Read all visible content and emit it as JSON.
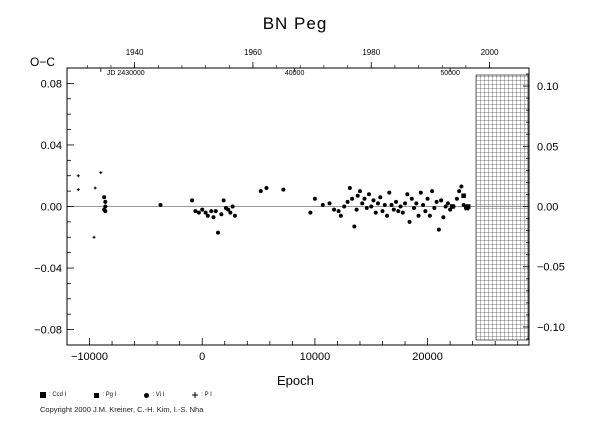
{
  "title": "BN  Peg",
  "ylabel": "O−C",
  "xlabel": "Epoch",
  "copyright": "Copyright 2000 J.M. Kreiner, C.-H. Kim, I.-S. Nha",
  "legend": [
    {
      "symbol": "square-filled",
      "label": ": Ccd I"
    },
    {
      "symbol": "square-small",
      "label": ": Pg I"
    },
    {
      "symbol": "circle-filled",
      "label": ": Vi I"
    },
    {
      "symbol": "plus",
      "label": ": P I"
    }
  ],
  "chart_data": {
    "type": "scatter",
    "title": "BN  Peg",
    "xlabel": "Epoch",
    "ylabel": "O−C",
    "xlim": [
      -12000,
      29000
    ],
    "ylim": [
      -0.09,
      0.09
    ],
    "right_ylim": [
      -0.115,
      0.115
    ],
    "x_ticks": [
      -10000,
      0,
      10000,
      20000
    ],
    "y_ticks": [
      "0.08",
      "0.04",
      "0.00",
      "-0.04",
      "-0.08"
    ],
    "right_ticks": [
      "0.10",
      "0.05",
      "0.00",
      "-0.05",
      "-0.10"
    ],
    "top_year_ticks": [
      "1940",
      "1960",
      "1980",
      "2000"
    ],
    "top_year_epochs": [
      -6000,
      4500,
      15000,
      25500
    ],
    "top_jd_labels": [
      "JD 2430000",
      "40000",
      "50000"
    ],
    "top_jd_epochs": [
      -9000,
      8200,
      22000
    ],
    "shaded_region_start_epoch": 24300,
    "zero_line": true,
    "series": [
      {
        "symbol": "plus",
        "points": [
          [
            -11000,
            0.02
          ],
          [
            -11000,
            0.011
          ],
          [
            -9500,
            0.012
          ],
          [
            -9000,
            0.022
          ],
          [
            -9600,
            -0.02
          ]
        ]
      },
      {
        "symbol": "circle-filled",
        "points": [
          [
            -8700,
            0.006
          ],
          [
            -8600,
            0.003
          ],
          [
            -8600,
            0.0
          ],
          [
            -8700,
            -0.002
          ],
          [
            -8600,
            -0.003
          ],
          [
            -3700,
            0.001
          ],
          [
            -900,
            0.004
          ],
          [
            -600,
            -0.003
          ],
          [
            -300,
            -0.004
          ],
          [
            0,
            -0.002
          ],
          [
            300,
            -0.004
          ],
          [
            500,
            -0.006
          ],
          [
            800,
            -0.003
          ],
          [
            1000,
            -0.007
          ],
          [
            1200,
            -0.003
          ],
          [
            1400,
            -0.017
          ],
          [
            1700,
            -0.005
          ],
          [
            1900,
            0.004
          ],
          [
            2100,
            -0.001
          ],
          [
            2300,
            -0.002
          ],
          [
            2500,
            -0.004
          ],
          [
            2700,
            0.0
          ],
          [
            2900,
            -0.006
          ],
          [
            5200,
            0.01
          ],
          [
            5700,
            0.012
          ],
          [
            7200,
            0.011
          ],
          [
            9600,
            -0.004
          ],
          [
            10000,
            0.005
          ],
          [
            10700,
            0.001
          ],
          [
            11300,
            0.002
          ],
          [
            11700,
            -0.002
          ],
          [
            12100,
            -0.003
          ],
          [
            12300,
            -0.006
          ],
          [
            12600,
            0.0
          ],
          [
            12900,
            0.003
          ],
          [
            13100,
            0.012
          ],
          [
            13300,
            0.005
          ],
          [
            13500,
            -0.013
          ],
          [
            13700,
            -0.002
          ],
          [
            13800,
            0.007
          ],
          [
            14000,
            0.01
          ],
          [
            14200,
            0.002
          ],
          [
            14400,
            0.005
          ],
          [
            14600,
            -0.001
          ],
          [
            14800,
            0.008
          ],
          [
            15000,
            0.0
          ],
          [
            15200,
            0.004
          ],
          [
            15400,
            -0.004
          ],
          [
            15600,
            0.002
          ],
          [
            15800,
            0.006
          ],
          [
            16000,
            -0.003
          ],
          [
            16200,
            0.001
          ],
          [
            16400,
            -0.006
          ],
          [
            16600,
            0.009
          ],
          [
            16800,
            0.001
          ],
          [
            17000,
            -0.002
          ],
          [
            17200,
            0.003
          ],
          [
            17400,
            -0.003
          ],
          [
            17600,
            0.0
          ],
          [
            17800,
            -0.004
          ],
          [
            18000,
            0.002
          ],
          [
            18200,
            0.008
          ],
          [
            18400,
            -0.01
          ],
          [
            18600,
            0.005
          ],
          [
            18800,
            -0.001
          ],
          [
            19000,
            0.002
          ],
          [
            19200,
            -0.006
          ],
          [
            19400,
            0.009
          ],
          [
            19600,
            0.001
          ],
          [
            19800,
            -0.003
          ],
          [
            20000,
            0.005
          ],
          [
            20200,
            -0.006
          ],
          [
            20400,
            0.01
          ],
          [
            20600,
            -0.001
          ],
          [
            20800,
            0.003
          ],
          [
            21000,
            -0.015
          ],
          [
            21200,
            0.004
          ],
          [
            21400,
            -0.007
          ],
          [
            21600,
            0.0
          ],
          [
            21800,
            0.002
          ],
          [
            22000,
            -0.002
          ],
          [
            22300,
            0.0
          ],
          [
            22600,
            0.005
          ],
          [
            22800,
            0.01
          ],
          [
            23000,
            0.013
          ],
          [
            23200,
            0.001
          ],
          [
            23400,
            -0.001
          ],
          [
            23500,
            0.0
          ]
        ]
      },
      {
        "symbol": "square-filled",
        "points": [
          [
            22200,
            0.0
          ],
          [
            23200,
            0.007
          ],
          [
            23500,
            -0.001
          ],
          [
            23600,
            0.0
          ]
        ]
      }
    ]
  }
}
